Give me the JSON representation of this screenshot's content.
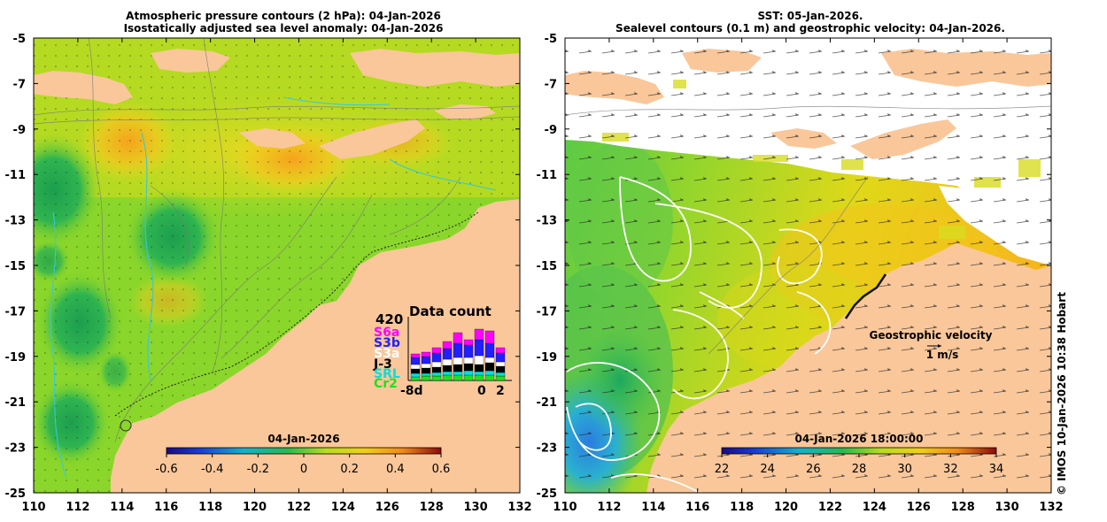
{
  "left_panel": {
    "title_line1": "Atmospheric pressure contours (2 hPa): 04-Jan-2026",
    "title_line2": "Isostatically adjusted sea level anomaly: 04-Jan-2026",
    "colorbar": {
      "date": "04-Jan-2026",
      "ticks": [
        "-0.6",
        "-0.4",
        "-0.2",
        "0",
        "0.2",
        "0.4",
        "0.6"
      ],
      "range": [
        -0.6,
        0.6
      ]
    },
    "data_count": {
      "title": "Data count",
      "max_label": "420",
      "x_start": "-8d",
      "x_mid": "0",
      "x_end": "2",
      "missions": [
        {
          "label": "S6a",
          "color": "#ff00ff"
        },
        {
          "label": "S3b",
          "color": "#2020ff"
        },
        {
          "label": "S3a",
          "color": "#ffffff"
        },
        {
          "label": "J-3",
          "color": "#000000"
        },
        {
          "label": "SRL",
          "color": "#00e0e0"
        },
        {
          "label": "Cr2",
          "color": "#20e020"
        }
      ]
    }
  },
  "right_panel": {
    "title_line1": "SST: 05-Jan-2026.",
    "title_line2": "Sealevel contours (0.1 m) and geostrophic velocity: 04-Jan-2026.",
    "colorbar": {
      "date": "04-Jan-2026 18:00:00",
      "ticks": [
        "22",
        "24",
        "26",
        "28",
        "30",
        "32",
        "34"
      ],
      "range": [
        22,
        34
      ]
    },
    "velocity_legend": {
      "title": "Geostrophic velocity",
      "scale": "1 m/s"
    }
  },
  "axes": {
    "x_ticks": [
      "110",
      "112",
      "114",
      "116",
      "118",
      "120",
      "122",
      "124",
      "126",
      "128",
      "130",
      "132"
    ],
    "y_ticks": [
      "-5",
      "-7",
      "-9",
      "-11",
      "-13",
      "-15",
      "-17",
      "-19",
      "-21",
      "-23",
      "-25"
    ],
    "lon_range": [
      110,
      132
    ],
    "lat_range": [
      -25,
      -5
    ]
  },
  "credit": "© IMOS 10-Jan-2026 10:38 Hobart",
  "colors": {
    "land": "#f9c79a",
    "ocean_left": "#8ad62a",
    "ocean_right_mid": "#c8dc18"
  }
}
